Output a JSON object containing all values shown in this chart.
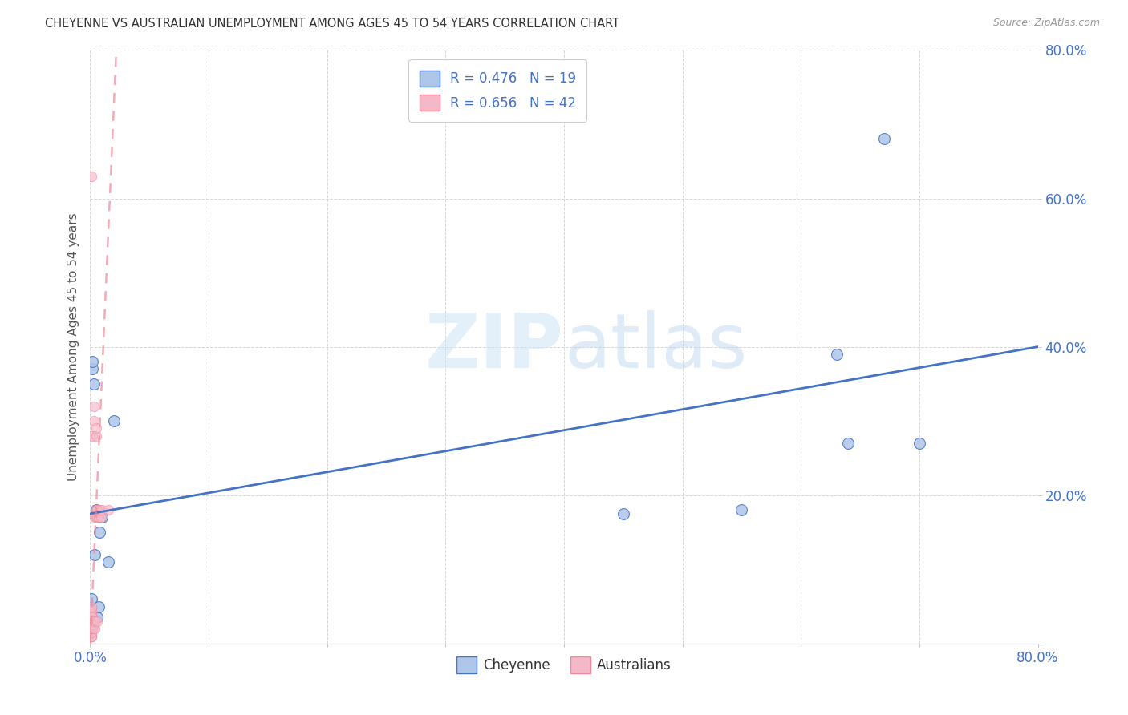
{
  "title": "CHEYENNE VS AUSTRALIAN UNEMPLOYMENT AMONG AGES 45 TO 54 YEARS CORRELATION CHART",
  "source": "Source: ZipAtlas.com",
  "ylabel": "Unemployment Among Ages 45 to 54 years",
  "watermark": "ZIPatlas",
  "cheyenne_R": 0.476,
  "cheyenne_N": 19,
  "australians_R": 0.656,
  "australians_N": 42,
  "cheyenne_color": "#aec6e8",
  "australians_color": "#f5b8c8",
  "cheyenne_line_color": "#4472c4",
  "australians_line_color": "#f08898",
  "cheyenne_x": [
    0.001,
    0.001,
    0.002,
    0.002,
    0.003,
    0.004,
    0.005,
    0.006,
    0.007,
    0.008,
    0.01,
    0.015,
    0.02,
    0.45,
    0.55,
    0.63,
    0.64,
    0.67,
    0.7
  ],
  "cheyenne_y": [
    0.035,
    0.06,
    0.37,
    0.38,
    0.35,
    0.12,
    0.18,
    0.035,
    0.05,
    0.15,
    0.17,
    0.11,
    0.3,
    0.175,
    0.18,
    0.39,
    0.27,
    0.68,
    0.27
  ],
  "australians_x": [
    0.001,
    0.001,
    0.001,
    0.001,
    0.001,
    0.001,
    0.001,
    0.001,
    0.001,
    0.001,
    0.001,
    0.001,
    0.001,
    0.001,
    0.001,
    0.002,
    0.002,
    0.002,
    0.002,
    0.002,
    0.002,
    0.003,
    0.003,
    0.003,
    0.003,
    0.003,
    0.004,
    0.004,
    0.004,
    0.005,
    0.005,
    0.005,
    0.005,
    0.006,
    0.006,
    0.006,
    0.007,
    0.007,
    0.008,
    0.009,
    0.01,
    0.015
  ],
  "australians_y": [
    0.01,
    0.01,
    0.01,
    0.015,
    0.02,
    0.02,
    0.025,
    0.03,
    0.03,
    0.035,
    0.04,
    0.04,
    0.045,
    0.05,
    0.63,
    0.02,
    0.02,
    0.025,
    0.03,
    0.035,
    0.28,
    0.02,
    0.025,
    0.03,
    0.3,
    0.32,
    0.02,
    0.03,
    0.17,
    0.17,
    0.18,
    0.28,
    0.29,
    0.03,
    0.18,
    0.17,
    0.17,
    0.17,
    0.18,
    0.17,
    0.18,
    0.18
  ],
  "xlim": [
    0.0,
    0.8
  ],
  "ylim": [
    0.0,
    0.8
  ],
  "background_color": "#ffffff",
  "grid_color": "#cccccc",
  "title_color": "#333333",
  "source_color": "#999999",
  "axis_label_color": "#4472c4",
  "cheyenne_trendline_start_y": 0.175,
  "cheyenne_trendline_end_y": 0.4,
  "australians_trendline_x0": 0.0,
  "australians_trendline_y0": 0.0,
  "australians_trendline_x1": 0.022,
  "australians_trendline_y1": 0.8
}
